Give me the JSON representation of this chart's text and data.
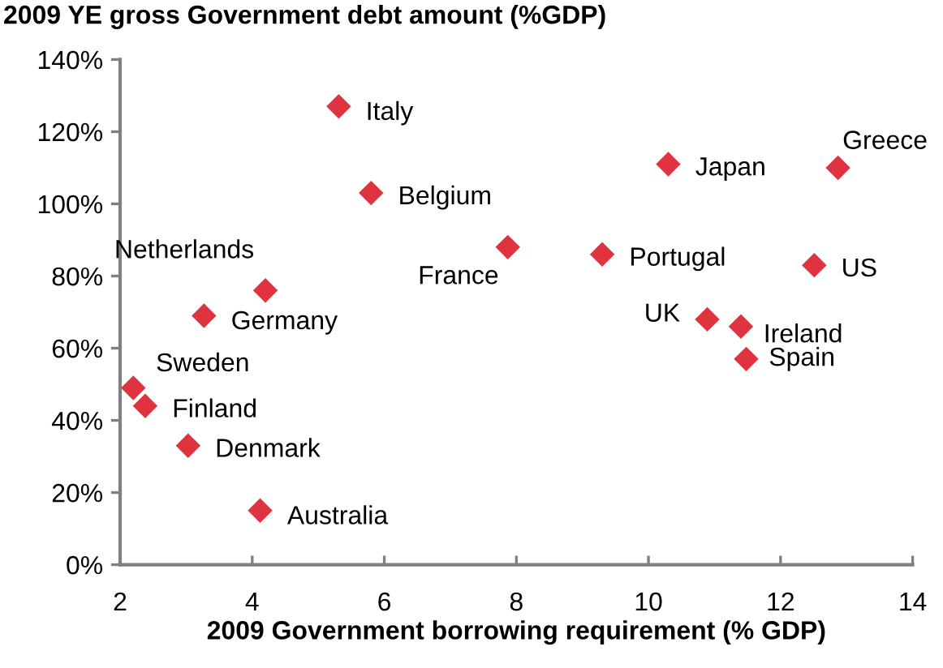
{
  "chart_data": {
    "type": "scatter",
    "title": "2009 YE gross Government debt amount (%GDP)",
    "xlabel": "2009 Government borrowing requirement (% GDP)",
    "x": [
      5.31,
      5.8,
      4.2,
      3.27,
      2.2,
      2.38,
      3.03,
      4.12,
      10.3,
      12.87,
      7.87,
      9.3,
      12.51,
      10.89,
      11.4,
      11.48
    ],
    "series": [
      {
        "color": "#e03340",
        "values": [
          127,
          103,
          76,
          69,
          49,
          44,
          33,
          15,
          111,
          110,
          88,
          86,
          83,
          68,
          66,
          57
        ]
      }
    ],
    "marker": "diamond",
    "annotations": [
      {
        "text": "Italy",
        "x": 5.31,
        "y": 127
      },
      {
        "text": "Belgium",
        "x": 5.8,
        "y": 103
      },
      {
        "text": "Netherlands",
        "x": 4.2,
        "y": 76
      },
      {
        "text": "Germany",
        "x": 3.27,
        "y": 69
      },
      {
        "text": "Sweden",
        "x": 2.2,
        "y": 49
      },
      {
        "text": "Finland",
        "x": 2.38,
        "y": 44
      },
      {
        "text": "Denmark",
        "x": 3.03,
        "y": 33
      },
      {
        "text": "Australia",
        "x": 4.12,
        "y": 15
      },
      {
        "text": "Japan",
        "x": 10.3,
        "y": 111
      },
      {
        "text": "Greece",
        "x": 12.87,
        "y": 110
      },
      {
        "text": "France",
        "x": 7.87,
        "y": 88
      },
      {
        "text": "Portugal",
        "x": 9.3,
        "y": 86
      },
      {
        "text": "US",
        "x": 12.51,
        "y": 83
      },
      {
        "text": "UK",
        "x": 10.89,
        "y": 68
      },
      {
        "text": "Ireland",
        "x": 11.4,
        "y": 66
      },
      {
        "text": "Spain",
        "x": 11.48,
        "y": 57
      }
    ],
    "xlim": [
      2,
      14
    ],
    "xticks": [
      2,
      4,
      6,
      8,
      10,
      12,
      14
    ],
    "ylim": [
      0,
      140
    ],
    "yticks": [
      {
        "value": 0,
        "label": "0%"
      },
      {
        "value": 20,
        "label": "20%"
      },
      {
        "value": 40,
        "label": "40%"
      },
      {
        "value": 60,
        "label": "60%"
      },
      {
        "value": 80,
        "label": "80%"
      },
      {
        "value": 100,
        "label": "100%"
      },
      {
        "value": 120,
        "label": "120%"
      },
      {
        "value": 140,
        "label": "140%"
      }
    ],
    "grid": false,
    "legend": false
  }
}
